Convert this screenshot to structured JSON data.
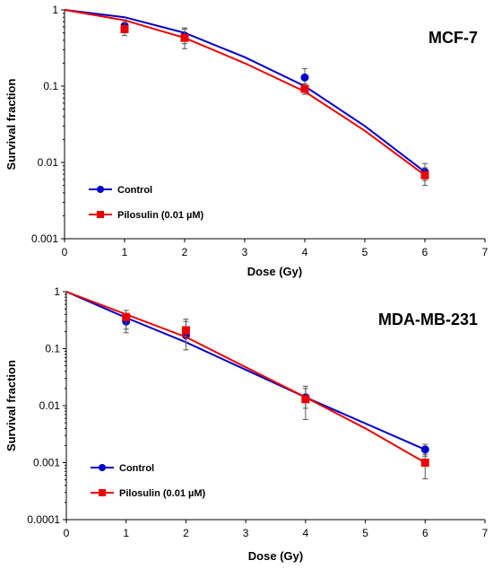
{
  "chart_data": [
    {
      "type": "scatter",
      "panel_label": "MCF-7",
      "xlabel": "Dose (Gy)",
      "ylabel": "Survival fraction",
      "xlim": [
        0,
        7
      ],
      "ylim": [
        0.001,
        1
      ],
      "yscale": "log",
      "xticks": [
        "0",
        "1",
        "2",
        "3",
        "4",
        "5",
        "6",
        "7"
      ],
      "yticks": [
        "0.001",
        "0.01",
        "0.1",
        "1"
      ],
      "grid": false,
      "legend_position": "bottom-left",
      "series": [
        {
          "name": "Control",
          "color": "#0000cc",
          "marker": "circle",
          "points": [
            {
              "x": 1,
              "y": 0.62,
              "lo": 0.5,
              "hi": 0.74
            },
            {
              "x": 2,
              "y": 0.46,
              "lo": 0.36,
              "hi": 0.58
            },
            {
              "x": 4,
              "y": 0.13,
              "lo": 0.1,
              "hi": 0.17
            },
            {
              "x": 6,
              "y": 0.0075,
              "lo": 0.0058,
              "hi": 0.0097
            }
          ],
          "fit": [
            [
              0,
              1
            ],
            [
              1,
              0.8
            ],
            [
              2,
              0.5
            ],
            [
              3,
              0.24
            ],
            [
              4,
              0.1
            ],
            [
              5,
              0.03
            ],
            [
              6,
              0.0075
            ]
          ]
        },
        {
          "name": "Pilosulin (0.01 µM)",
          "color": "#ee0000",
          "marker": "square",
          "points": [
            {
              "x": 1,
              "y": 0.56,
              "lo": 0.46,
              "hi": 0.68
            },
            {
              "x": 2,
              "y": 0.43,
              "lo": 0.31,
              "hi": 0.56
            },
            {
              "x": 4,
              "y": 0.092,
              "lo": 0.078,
              "hi": 0.107
            },
            {
              "x": 6,
              "y": 0.0068,
              "lo": 0.005,
              "hi": 0.0085
            }
          ],
          "fit": [
            [
              0,
              1
            ],
            [
              1,
              0.73
            ],
            [
              2,
              0.43
            ],
            [
              3,
              0.2
            ],
            [
              4,
              0.085
            ],
            [
              5,
              0.026
            ],
            [
              6,
              0.0068
            ]
          ]
        }
      ]
    },
    {
      "type": "scatter",
      "panel_label": "MDA-MB-231",
      "xlabel": "Dose (Gy)",
      "ylabel": "Survival fraction",
      "xlim": [
        0,
        7
      ],
      "ylim": [
        0.0001,
        1
      ],
      "yscale": "log",
      "xticks": [
        "0",
        "1",
        "2",
        "3",
        "4",
        "5",
        "6",
        "7"
      ],
      "yticks": [
        "0.0001",
        "0.001",
        "0.01",
        "0.1",
        "1"
      ],
      "grid": false,
      "legend_position": "bottom-left",
      "series": [
        {
          "name": "Control",
          "color": "#0000cc",
          "marker": "circle",
          "points": [
            {
              "x": 1,
              "y": 0.3,
              "lo": 0.19,
              "hi": 0.4
            },
            {
              "x": 2,
              "y": 0.17,
              "lo": 0.095,
              "hi": 0.3
            },
            {
              "x": 4,
              "y": 0.014,
              "lo": 0.009,
              "hi": 0.02
            },
            {
              "x": 6,
              "y": 0.0017,
              "lo": 0.0013,
              "hi": 0.0021
            }
          ],
          "fit": [
            [
              0,
              1
            ],
            [
              1,
              0.35
            ],
            [
              2,
              0.13
            ],
            [
              4,
              0.014
            ],
            [
              6,
              0.0017
            ]
          ]
        },
        {
          "name": "Pilosulin (0.01 µM)",
          "color": "#ee0000",
          "marker": "square",
          "points": [
            {
              "x": 1,
              "y": 0.36,
              "lo": 0.22,
              "hi": 0.47
            },
            {
              "x": 2,
              "y": 0.21,
              "lo": 0.13,
              "hi": 0.33
            },
            {
              "x": 4,
              "y": 0.013,
              "lo": 0.0057,
              "hi": 0.022
            },
            {
              "x": 6,
              "y": 0.001,
              "lo": 0.00052,
              "hi": 0.0014
            }
          ],
          "fit": [
            [
              0,
              1
            ],
            [
              1,
              0.4
            ],
            [
              2,
              0.16
            ],
            [
              4,
              0.014
            ],
            [
              5,
              0.004
            ],
            [
              6,
              0.001
            ]
          ]
        }
      ]
    }
  ]
}
